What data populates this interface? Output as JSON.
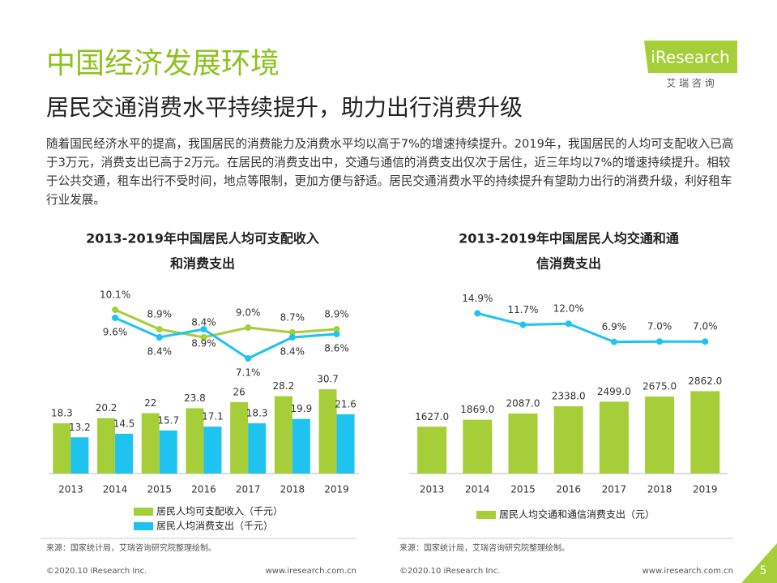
{
  "header": {
    "title": "中国经济发展环境",
    "subtitle": "居民交通消费水平持续提升，助力出行消费升级",
    "logo": "iResearch",
    "logo_sub": "艾 瑞 咨 询"
  },
  "intro": "随着国民经济水平的提高，我国居民的消费能力及消费水平均以高于7%的增速持续提升。2019年，我国居民的人均可支配收入已高于3万元，消费支出已高于2万元。在居民的消费支出中，交通与通信的消费支出仅次于居住，近三年均以7%的增速持续提升。相较于公共交通，租车出行不受时间，地点等限制，更加方便与舒适。居民交通消费水平的持续提升有望助力出行的消费升级，利好租车行业发展。",
  "chart_data": [
    {
      "type": "bar",
      "title": [
        "2013-2019年中国居民人均可支配收入",
        "和消费支出"
      ],
      "categories": [
        "2013",
        "2014",
        "2015",
        "2016",
        "2017",
        "2018",
        "2019"
      ],
      "series": [
        {
          "name": "居民人均可支配收入（千元）",
          "color": "#a6ce39",
          "values": [
            18.3,
            20.2,
            22,
            23.8,
            26,
            28.2,
            30.7
          ]
        },
        {
          "name": "居民人均消费支出（千元）",
          "color": "#1fc3ef",
          "values": [
            13.2,
            14.5,
            15.7,
            17.1,
            18.3,
            19.9,
            21.6
          ]
        },
        {
          "type": "line",
          "axis": "y2",
          "color": "#a6ce39",
          "values": [
            null,
            10.1,
            8.9,
            8.4,
            9.0,
            8.7,
            8.9
          ],
          "value_labels": [
            null,
            "10.1%",
            "8.9%",
            "8.4%",
            "9.0%",
            "8.7%",
            "8.9%"
          ]
        },
        {
          "type": "line",
          "axis": "y2",
          "color": "#1fc3ef",
          "values": [
            null,
            9.6,
            8.4,
            8.9,
            7.1,
            8.4,
            8.6
          ],
          "value_labels": [
            null,
            "9.6%",
            "8.4%",
            "8.9%",
            "7.1%",
            "8.4%",
            "8.6%"
          ]
        }
      ],
      "ylim": [
        0,
        65
      ],
      "y2lim": [
        0,
        11
      ]
    },
    {
      "type": "bar",
      "title": [
        "2013-2019年中国居民人均交通和通",
        "信消费支出"
      ],
      "categories": [
        "2013",
        "2014",
        "2015",
        "2016",
        "2017",
        "2018",
        "2019"
      ],
      "series": [
        {
          "name": "居民人均交通和通信消费支出（元）",
          "color": "#a6ce39",
          "values": [
            1627,
            1869,
            2087,
            2338,
            2499,
            2675,
            2862
          ],
          "value_labels": [
            "1627.0",
            "1869.0",
            "2087.0",
            "2338.0",
            "2499.0",
            "2675.0",
            "2862.0"
          ]
        },
        {
          "type": "line",
          "axis": "y2",
          "color": "#1fc3ef",
          "values": [
            null,
            14.9,
            11.7,
            12.0,
            6.9,
            7.0,
            7.0
          ],
          "value_labels": [
            null,
            "14.9%",
            "11.7%",
            "12.0%",
            "6.9%",
            "7.0%",
            "7.0%"
          ]
        }
      ],
      "ylim": [
        0,
        6200
      ],
      "y2lim": [
        -30,
        20
      ]
    }
  ],
  "sources": [
    "来源：国家统计局，艾瑞咨询研究院整理绘制。",
    "来源：国家统计局，艾瑞咨询研究院整理绘制。"
  ],
  "footer": {
    "copyright": [
      "©2020.10 iResearch Inc.",
      "©2020.10 iResearch Inc."
    ],
    "url": [
      "www.iresearch.com.cn",
      "www.iresearch.com.cn"
    ],
    "page": "5"
  }
}
